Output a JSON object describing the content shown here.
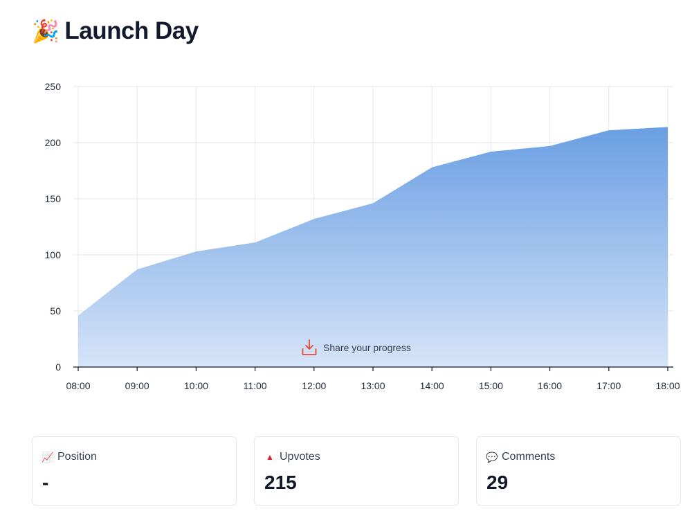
{
  "header": {
    "title": "Launch Day",
    "title_icon": "party-popper-icon",
    "title_emoji": "🎉"
  },
  "share": {
    "label": "Share your progress",
    "icon": "download-tray-icon",
    "icon_color": "#e8492f"
  },
  "chart_data": {
    "type": "area",
    "x": [
      "08:00",
      "09:00",
      "10:00",
      "11:00",
      "12:00",
      "13:00",
      "14:00",
      "15:00",
      "16:00",
      "17:00",
      "18:00"
    ],
    "series": [
      {
        "values": [
          46,
          87,
          103,
          111,
          132,
          146,
          178,
          192,
          197,
          211,
          214
        ]
      }
    ],
    "ylim": [
      0,
      250
    ],
    "yticks": [
      0,
      50,
      100,
      150,
      200,
      250
    ],
    "grid": true,
    "fill_color_top": "#6a9fe3",
    "fill_color_bottom": "#d6e4f8",
    "title": "",
    "xlabel": "",
    "ylabel": ""
  },
  "stats": [
    {
      "icon": "chart-increasing-icon",
      "emoji": "📈",
      "label": "Position",
      "value": "-"
    },
    {
      "icon": "red-triangle-up-icon",
      "emoji": "▲",
      "label": "Upvotes",
      "value": "215"
    },
    {
      "icon": "speech-bubble-icon",
      "emoji": "💬",
      "label": "Comments",
      "value": "29"
    }
  ]
}
